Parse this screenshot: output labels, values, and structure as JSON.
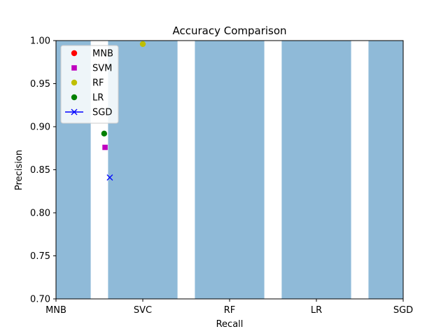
{
  "chart_data": {
    "type": "bar+scatter",
    "title": "Accuracy Comparison",
    "xlabel": "Recall",
    "ylabel": "Precision",
    "ylim": [
      0.7,
      1.0
    ],
    "yticks": [
      "0.70",
      "0.75",
      "0.80",
      "0.85",
      "0.90",
      "0.95",
      "1.00"
    ],
    "categories": [
      "MNB",
      "SVC",
      "RF",
      "LR",
      "SGD"
    ],
    "xlim": [
      0,
      4
    ],
    "bars": {
      "color": "#8fbad8",
      "width": 0.8,
      "positions": [
        0,
        1,
        2,
        3,
        4
      ],
      "values": [
        1.0,
        1.0,
        1.0,
        1.0,
        1.0
      ]
    },
    "series": [
      {
        "name": "MNB",
        "color": "#ff0000",
        "marker": "circle",
        "x": null,
        "y": null
      },
      {
        "name": "SVM",
        "color": "#bf00bf",
        "marker": "square",
        "x": 0.565,
        "y": 0.876
      },
      {
        "name": "RF",
        "color": "#bfbf00",
        "marker": "circle",
        "x": 1.0,
        "y": 0.996
      },
      {
        "name": "LR",
        "color": "#008000",
        "marker": "circle",
        "x": 0.555,
        "y": 0.892
      },
      {
        "name": "SGD",
        "color": "#0000ff",
        "marker": "x",
        "line": true,
        "x": 0.62,
        "y": 0.841
      }
    ],
    "legend_position": "upper-left",
    "grid": false
  }
}
